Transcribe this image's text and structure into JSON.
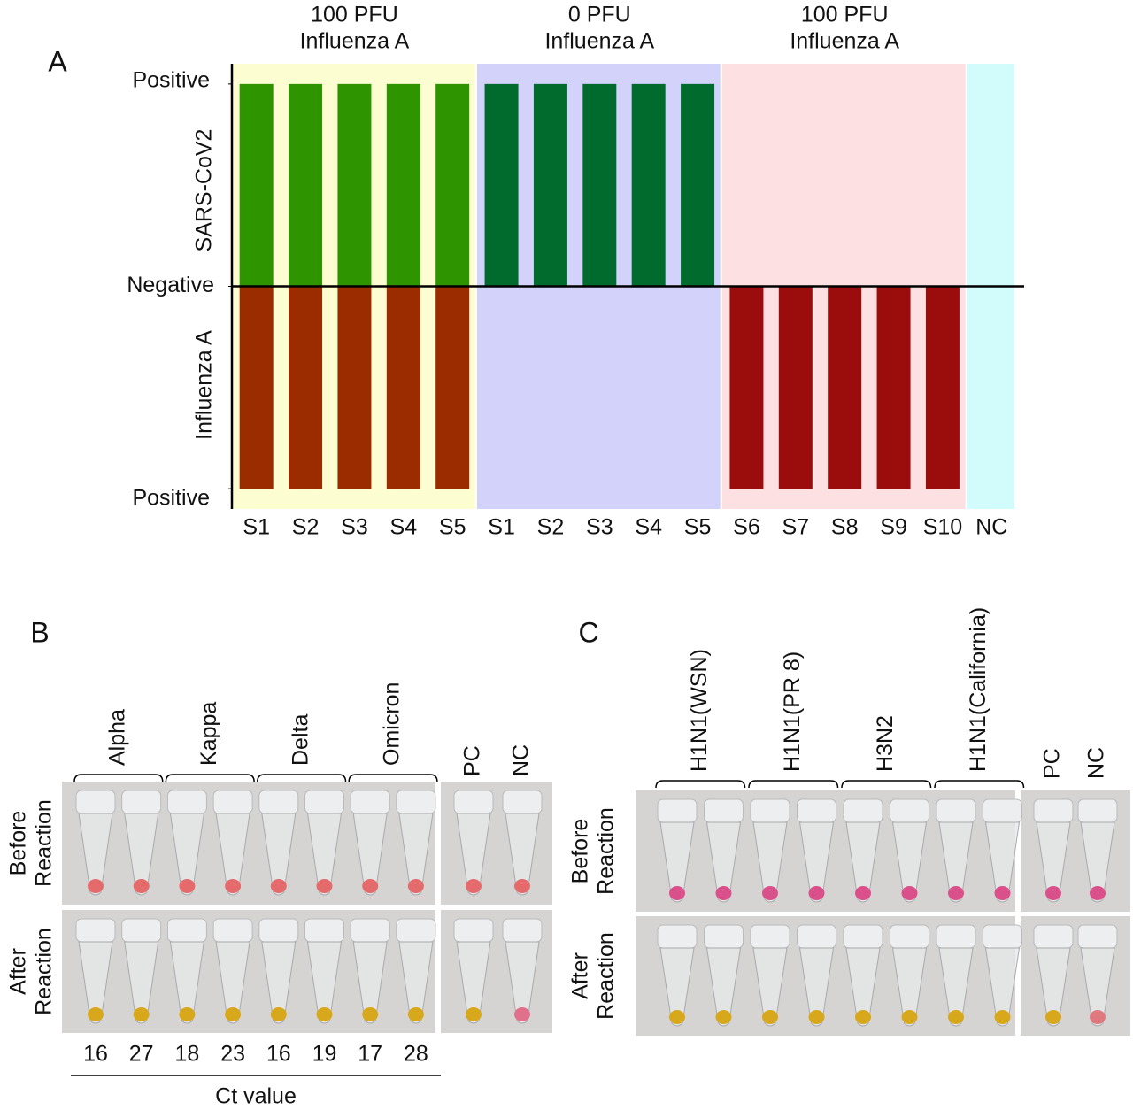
{
  "chart_data": {
    "type": "bar",
    "panel_label": "A",
    "groups": [
      {
        "title": [
          "100 PFU",
          "Influenza A"
        ],
        "background": "#fdfdd2",
        "categories": [
          "S1",
          "S2",
          "S3",
          "S4",
          "S5"
        ]
      },
      {
        "title": [
          "0 PFU",
          "Influenza A"
        ],
        "background": "#d2d2fb",
        "categories": [
          "S1",
          "S2",
          "S3",
          "S4",
          "S5"
        ]
      },
      {
        "title": [
          "100 PFU",
          "Influenza A"
        ],
        "background": "#fde0e2",
        "categories": [
          "S6",
          "S7",
          "S8",
          "S9",
          "S10"
        ]
      },
      {
        "background": "#d2fbfb",
        "categories": [
          "NC"
        ]
      }
    ],
    "series": [
      {
        "name": "SARS-CoV2",
        "colors": [
          "#2e9500",
          "#006b2c",
          "#006b2c",
          "#006b2c"
        ],
        "values": [
          1,
          1,
          1,
          1,
          1,
          1,
          1,
          1,
          1,
          1,
          0,
          0,
          0,
          0,
          0,
          0
        ]
      },
      {
        "name": "Influenza A",
        "colors": [
          "#9a2c00",
          "#9a2c00",
          "#9b0c0c",
          "#9b0c0c"
        ],
        "values": [
          -1,
          -1,
          -1,
          -1,
          -1,
          0,
          0,
          0,
          0,
          0,
          -1,
          -1,
          -1,
          -1,
          -1,
          0
        ]
      }
    ],
    "ylim": [
      -1.1,
      1.1
    ],
    "yticks": [
      {
        "value": 1,
        "label": "Positive"
      },
      {
        "value": 0,
        "label": "Negative"
      },
      {
        "value": -1,
        "label": "Positive"
      }
    ]
  },
  "panel_b": {
    "label": "B",
    "groups": [
      "Alpha",
      "Kappa",
      "Delta",
      "Omicron"
    ],
    "controls": [
      "PC",
      "NC"
    ],
    "row_labels": [
      [
        "Before",
        "Reaction"
      ],
      [
        "After",
        "Reaction"
      ]
    ],
    "liquid": {
      "before": "#e46a6c",
      "after": "#d8a81c",
      "nc_after": "#e0708c"
    },
    "ct_values": [
      16,
      27,
      18,
      23,
      16,
      19,
      17,
      28
    ],
    "ct_label": "Ct value"
  },
  "panel_c": {
    "label": "C",
    "groups": [
      "H1N1(WSN)",
      "H1N1(PR 8)",
      "H3N2",
      "H1N1(California)"
    ],
    "controls": [
      "PC",
      "NC"
    ],
    "row_labels": [
      [
        "Before",
        "Reaction"
      ],
      [
        "After",
        "Reaction"
      ]
    ],
    "liquid": {
      "before": "#d9508a",
      "after": "#d8a81c",
      "nc_after": "#e07880"
    }
  }
}
